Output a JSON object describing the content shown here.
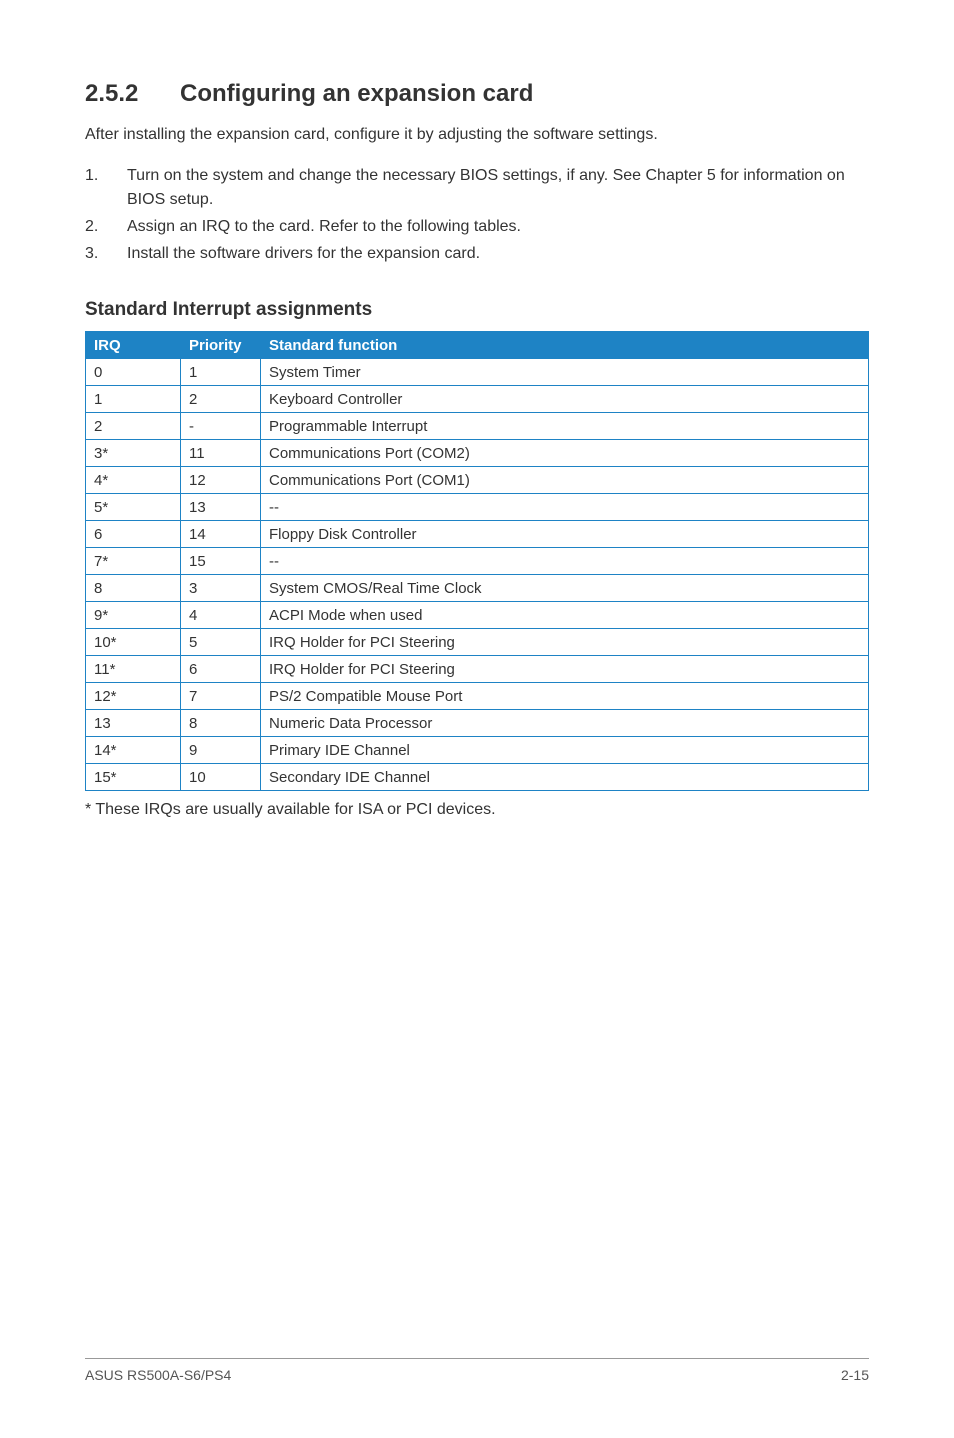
{
  "section": {
    "number": "2.5.2",
    "title": "Configuring an expansion card"
  },
  "intro": "After installing the expansion card, configure it by adjusting the software settings.",
  "steps": [
    {
      "num": "1.",
      "text": "Turn on the system and change the necessary BIOS settings, if any. See Chapter 5 for information on BIOS setup."
    },
    {
      "num": "2.",
      "text": "Assign an IRQ to the card. Refer to the following tables."
    },
    {
      "num": "3.",
      "text": "Install the software drivers for the expansion card."
    }
  ],
  "table": {
    "title": "Standard Interrupt assignments",
    "header": {
      "c1": "IRQ",
      "c2": "Priority",
      "c3": "Standard function"
    },
    "header_bg": "#1e83c5",
    "header_text": "#ffffff",
    "border_color": "#1e83c5",
    "cell_text": "#333333",
    "rows": [
      {
        "c1": "0",
        "c2": "1",
        "c3": "System Timer"
      },
      {
        "c1": "1",
        "c2": "2",
        "c3": "Keyboard Controller"
      },
      {
        "c1": "2",
        "c2": "-",
        "c3": "Programmable Interrupt"
      },
      {
        "c1": "3*",
        "c2": "11",
        "c3": "Communications Port (COM2)"
      },
      {
        "c1": "4*",
        "c2": "12",
        "c3": "Communications Port (COM1)"
      },
      {
        "c1": "5*",
        "c2": "13",
        "c3": "--"
      },
      {
        "c1": "6",
        "c2": "14",
        "c3": "Floppy Disk Controller"
      },
      {
        "c1": "7*",
        "c2": "15",
        "c3": "--"
      },
      {
        "c1": "8",
        "c2": "3",
        "c3": "System CMOS/Real Time Clock"
      },
      {
        "c1": "9*",
        "c2": "4",
        "c3": "ACPI Mode when used"
      },
      {
        "c1": "10*",
        "c2": "5",
        "c3": "IRQ Holder for PCI Steering"
      },
      {
        "c1": "11*",
        "c2": "6",
        "c3": "IRQ Holder for PCI Steering"
      },
      {
        "c1": "12*",
        "c2": "7",
        "c3": "PS/2 Compatible Mouse Port"
      },
      {
        "c1": "13",
        "c2": "8",
        "c3": "Numeric Data Processor"
      },
      {
        "c1": "14*",
        "c2": "9",
        "c3": "Primary IDE Channel"
      },
      {
        "c1": "15*",
        "c2": "10",
        "c3": "Secondary IDE Channel"
      }
    ]
  },
  "footnote": "* These IRQs are usually available for ISA or PCI devices.",
  "footer": {
    "left": "ASUS RS500A-S6/PS4",
    "right": "2-15"
  }
}
